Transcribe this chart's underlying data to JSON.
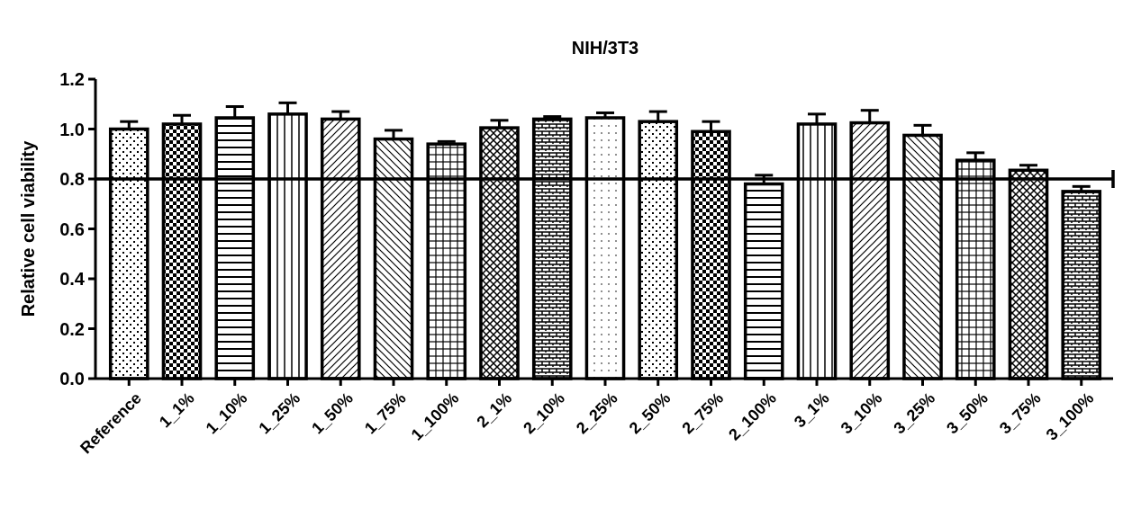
{
  "chart_data": {
    "type": "bar",
    "title": "NIH/3T3",
    "ylabel": "Relative cell viability",
    "categories": [
      "Reference",
      "1_1%",
      "1_10%",
      "1_25%",
      "1_50%",
      "1_75%",
      "1_100%",
      "2_1%",
      "2_10%",
      "2_25%",
      "2_50%",
      "2_75%",
      "2_100%",
      "3_1%",
      "3_10%",
      "3_25%",
      "3_50%",
      "3_75%",
      "3_100%"
    ],
    "values": [
      1.0,
      1.02,
      1.045,
      1.06,
      1.04,
      0.96,
      0.94,
      1.005,
      1.04,
      1.045,
      1.03,
      0.99,
      0.78,
      1.02,
      1.025,
      0.975,
      0.875,
      0.835,
      0.75
    ],
    "errors": [
      0.03,
      0.035,
      0.045,
      0.045,
      0.03,
      0.035,
      0.01,
      0.03,
      0.01,
      0.02,
      0.04,
      0.04,
      0.035,
      0.04,
      0.05,
      0.04,
      0.03,
      0.02,
      0.02
    ],
    "color": "#000000",
    "ylim": [
      0,
      1.2
    ],
    "yticks": [
      {
        "value": 0,
        "label": "0.0"
      },
      {
        "value": 0.2,
        "label": "0.2"
      },
      {
        "value": 0.4,
        "label": "0.4"
      },
      {
        "value": 0.6,
        "label": "0.6"
      },
      {
        "value": 0.8,
        "label": "0.8"
      },
      {
        "value": 1,
        "label": "1.0"
      },
      {
        "value": 1.2,
        "label": "1.2"
      }
    ],
    "ref_lines": [
      {
        "axis": "y",
        "value": 0.8,
        "color": "#000000"
      }
    ],
    "grid": false
  }
}
